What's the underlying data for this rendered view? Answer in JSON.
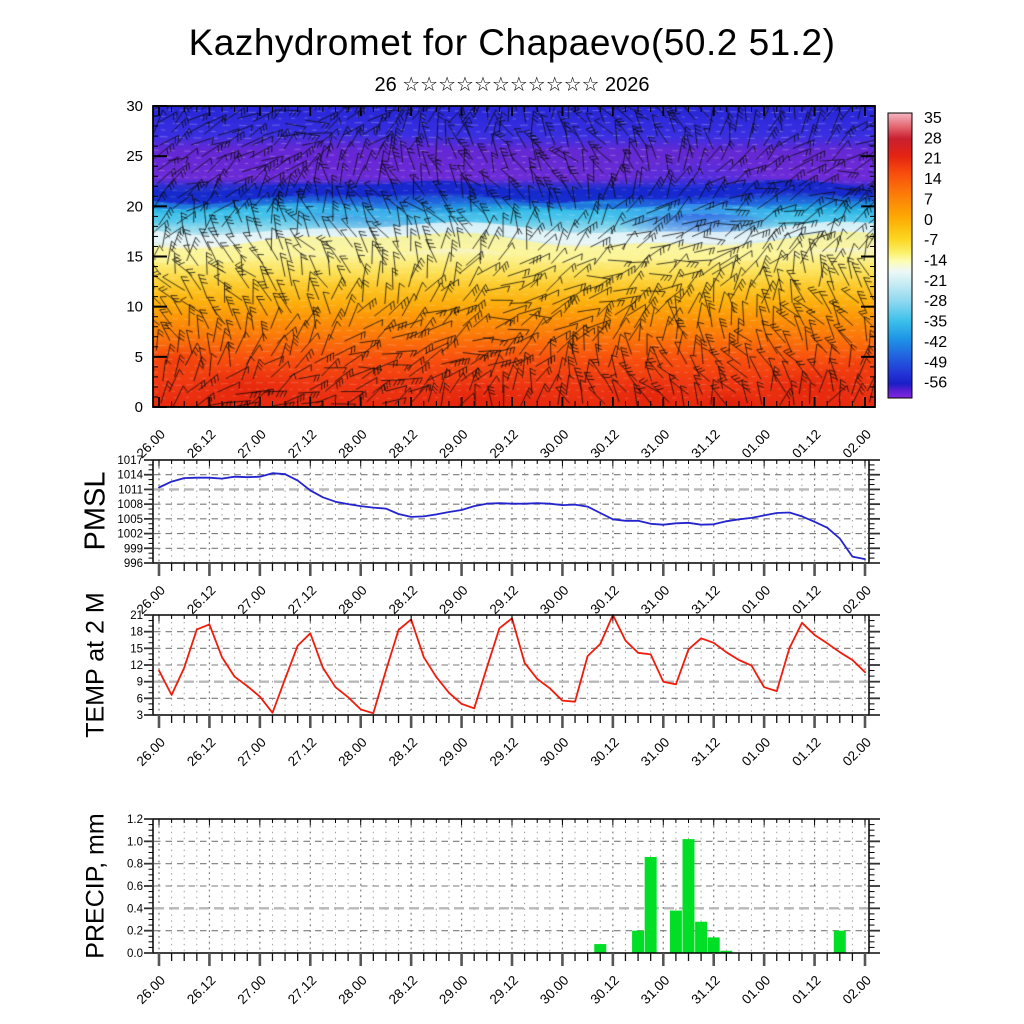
{
  "title": "Kazhydromet for Chapaevo(50.2 51.2)",
  "subtitle": "26 ☆☆☆☆☆☆☆☆☆☆☆ 2026",
  "time_axis": {
    "major_labels": [
      "26.00",
      "26.12",
      "27.00",
      "27.12",
      "28.00",
      "28.12",
      "29.00",
      "29.12",
      "30.00",
      "30.12",
      "31.00",
      "31.12",
      "01.00",
      "01.12",
      "02.00"
    ],
    "minor_step_hours": 3,
    "major_step_hours": 12
  },
  "colorbar": {
    "tick_labels": [
      "35",
      "28",
      "21",
      "14",
      "7",
      "0",
      "-7",
      "-14",
      "-21",
      "-28",
      "-35",
      "-42",
      "-49",
      "-56"
    ],
    "gradient": [
      [
        "0",
        "#f4b6c2"
      ],
      [
        "0.05",
        "#e2636e"
      ],
      [
        "0.09",
        "#c92030"
      ],
      [
        "0.15",
        "#e42313"
      ],
      [
        "0.21",
        "#f84c0d"
      ],
      [
        "0.29",
        "#fc7e08"
      ],
      [
        "0.37",
        "#fdac04"
      ],
      [
        "0.44",
        "#fcd51e"
      ],
      [
        "0.49",
        "#fbf06a"
      ],
      [
        "0.52",
        "#fcfcb4"
      ],
      [
        "0.555",
        "#eef8f6"
      ],
      [
        "0.6",
        "#c6ecf4"
      ],
      [
        "0.66",
        "#8fd8f0"
      ],
      [
        "0.73",
        "#3cc0ea"
      ],
      [
        "0.79",
        "#1e96e6"
      ],
      [
        "0.855",
        "#2261e0"
      ],
      [
        "0.91",
        "#2337d6"
      ],
      [
        "0.95",
        "#1a1ec8"
      ],
      [
        "0.975",
        "#5a1ed2"
      ],
      [
        "1",
        "#8127e0"
      ]
    ]
  },
  "chart_data": [
    {
      "type": "heatmap",
      "name": "temperature-wind-cross-section",
      "title": "26 ☆☆☆☆☆☆☆☆☆☆☆ 2026",
      "ylim": [
        0,
        30
      ],
      "ytick_labels": [
        "0",
        "5",
        "10",
        "15",
        "20",
        "25",
        "30"
      ],
      "overlay": "wind-barbs",
      "colorbar_ticks": [
        35,
        28,
        21,
        14,
        7,
        0,
        -7,
        -14,
        -21,
        -28,
        -35,
        -42,
        -49,
        -56
      ],
      "profile_gradient": [
        [
          "0",
          "#2626d8"
        ],
        [
          "0.1",
          "#3a30e2"
        ],
        [
          "0.15",
          "#6428d4"
        ],
        [
          "0.24",
          "#6e2cd8"
        ],
        [
          "0.265",
          "#2e2ed0"
        ],
        [
          "0.29",
          "#1a34cc"
        ],
        [
          "0.315",
          "#1e78dc"
        ],
        [
          "0.345",
          "#28b2e4"
        ],
        [
          "0.385",
          "#66cdea"
        ],
        [
          "0.42",
          "#a8e0f0"
        ],
        [
          "0.45",
          "#d8eef2"
        ],
        [
          "0.47",
          "#f6f6d8"
        ],
        [
          "0.5",
          "#fcf393"
        ],
        [
          "0.55",
          "#fce25a"
        ],
        [
          "0.6",
          "#fcc829"
        ],
        [
          "0.65",
          "#fdb10e"
        ],
        [
          "0.71",
          "#fc9207"
        ],
        [
          "0.78",
          "#fb700a"
        ],
        [
          "0.84",
          "#f8500e"
        ],
        [
          "0.92",
          "#f03812"
        ],
        [
          "1",
          "#e82a10"
        ]
      ]
    },
    {
      "type": "line",
      "name": "pmsl",
      "ylabel": "PMSL",
      "color": "#2424cf",
      "ylim": [
        996,
        1017
      ],
      "ytick_labels": [
        "996",
        "999",
        "1002",
        "1005",
        "1008",
        "1011",
        "1014",
        "1017"
      ],
      "y_minor_step": 1,
      "emphasis_tick": "1011",
      "step_hours": 3,
      "values": [
        1011.4,
        1012.6,
        1013.3,
        1013.4,
        1013.4,
        1013.2,
        1013.6,
        1013.5,
        1013.6,
        1014.3,
        1014.1,
        1012.8,
        1010.8,
        1009.4,
        1008.5,
        1008.0,
        1007.6,
        1007.3,
        1007.1,
        1006.0,
        1005.4,
        1005.5,
        1005.9,
        1006.4,
        1006.8,
        1007.6,
        1008.1,
        1008.2,
        1008.1,
        1008.1,
        1008.2,
        1008.1,
        1007.8,
        1007.9,
        1007.5,
        1006.2,
        1004.9,
        1004.6,
        1004.6,
        1004.0,
        1003.8,
        1004.1,
        1004.2,
        1003.8,
        1003.9,
        1004.5,
        1004.9,
        1005.2,
        1005.7,
        1006.2,
        1006.3,
        1005.5,
        1004.4,
        1003.2,
        1001.0,
        997.3,
        996.8
      ]
    },
    {
      "type": "line",
      "name": "temp-2m",
      "ylabel": "TEMP at 2 M",
      "color": "#f01c0c",
      "ylim": [
        3,
        21
      ],
      "ytick_labels": [
        "3",
        "6",
        "9",
        "12",
        "15",
        "18",
        "21"
      ],
      "y_minor_step": 1,
      "emphasis_tick": "9",
      "step_hours": 3,
      "values": [
        11.0,
        6.6,
        11.5,
        18.4,
        19.3,
        13.4,
        9.9,
        8.2,
        6.3,
        3.4,
        9.5,
        15.5,
        17.7,
        11.5,
        8.0,
        6.2,
        4.0,
        3.3,
        11.0,
        18.3,
        20.2,
        13.4,
        9.8,
        7.0,
        5.0,
        4.2,
        11.5,
        18.6,
        20.4,
        12.4,
        9.5,
        7.8,
        5.6,
        5.4,
        13.6,
        15.8,
        21.0,
        16.4,
        14.2,
        13.9,
        9.0,
        8.5,
        14.8,
        16.8,
        16.0,
        14.3,
        12.9,
        11.9,
        8.0,
        7.3,
        15.0,
        19.6,
        17.4,
        15.9,
        14.3,
        12.9,
        10.7
      ]
    },
    {
      "type": "bar",
      "name": "precip",
      "ylabel": "PRECIP, mm",
      "color": "#00df26",
      "ylim": [
        0,
        1.2
      ],
      "ytick_labels": [
        "0.0",
        "0.2",
        "0.4",
        "0.6",
        "0.8",
        "1.0",
        "1.2"
      ],
      "y_minor_step": 0.05,
      "emphasis_tick": "0.4",
      "step_hours": 3,
      "values": [
        0,
        0,
        0,
        0,
        0,
        0,
        0,
        0,
        0,
        0,
        0,
        0,
        0,
        0,
        0,
        0,
        0,
        0,
        0,
        0,
        0,
        0,
        0,
        0,
        0,
        0,
        0,
        0,
        0,
        0,
        0,
        0,
        0,
        0,
        0,
        0.08,
        0,
        0,
        0.2,
        0.86,
        0,
        0.38,
        1.02,
        0.28,
        0.14,
        0.02,
        0,
        0,
        0,
        0,
        0,
        0,
        0,
        0,
        0.2,
        0,
        0
      ]
    }
  ]
}
